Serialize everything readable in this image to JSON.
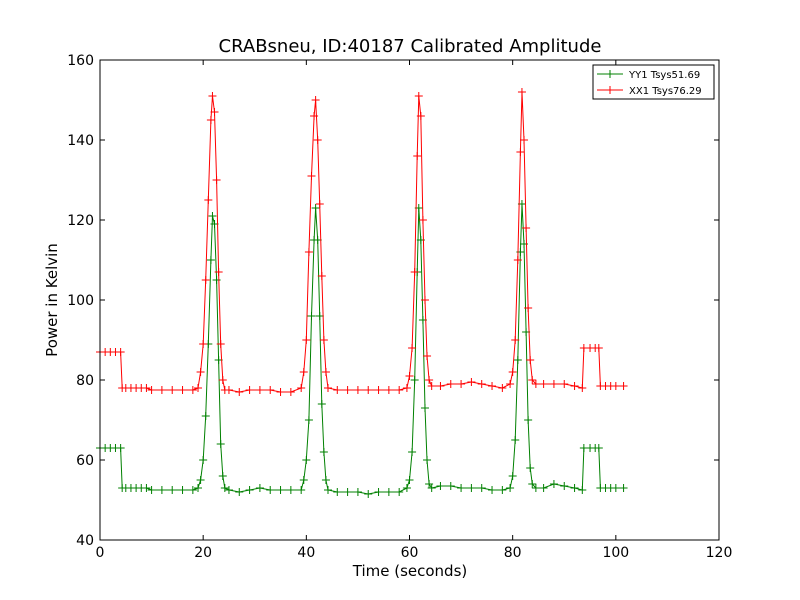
{
  "chart_data": {
    "type": "line",
    "title": "CRABsneu, ID:40187 Calibrated Amplitude",
    "xlabel": "Time (seconds)",
    "ylabel": "Power in Kelvin",
    "xlim": [
      0,
      120
    ],
    "ylim": [
      40,
      160
    ],
    "xticks": [
      "0",
      "20",
      "40",
      "60",
      "80",
      "100",
      "120"
    ],
    "yticks": [
      "40",
      "60",
      "80",
      "100",
      "120",
      "140",
      "160"
    ],
    "grid": false,
    "legend_position": "top-right",
    "marker": "+",
    "series": [
      {
        "name": "YY1 Tsys51.69",
        "color": "#008000",
        "points": [
          [
            0.0,
            63.0
          ],
          [
            1.0,
            63.0
          ],
          [
            2.0,
            63.0
          ],
          [
            3.0,
            63.0
          ],
          [
            4.0,
            63.0
          ],
          [
            4.3,
            53.0
          ],
          [
            5.0,
            53.0
          ],
          [
            6.0,
            53.0
          ],
          [
            7.0,
            53.0
          ],
          [
            8.0,
            53.0
          ],
          [
            9.0,
            53.0
          ],
          [
            10.0,
            52.5
          ],
          [
            12.0,
            52.5
          ],
          [
            14.0,
            52.5
          ],
          [
            16.0,
            52.5
          ],
          [
            18.0,
            52.5
          ],
          [
            19.0,
            53.0
          ],
          [
            19.5,
            55.0
          ],
          [
            20.0,
            60.0
          ],
          [
            20.5,
            71.0
          ],
          [
            21.0,
            89.0
          ],
          [
            21.5,
            110.0
          ],
          [
            21.8,
            121.0
          ],
          [
            22.2,
            119.0
          ],
          [
            22.6,
            105.0
          ],
          [
            23.0,
            85.0
          ],
          [
            23.4,
            64.0
          ],
          [
            23.8,
            56.0
          ],
          [
            24.2,
            53.0
          ],
          [
            25.0,
            52.5
          ],
          [
            27.0,
            52.0
          ],
          [
            29.0,
            52.5
          ],
          [
            31.0,
            53.0
          ],
          [
            33.0,
            52.5
          ],
          [
            35.0,
            52.5
          ],
          [
            37.0,
            52.5
          ],
          [
            39.0,
            52.5
          ],
          [
            39.5,
            55.0
          ],
          [
            40.0,
            60.0
          ],
          [
            40.5,
            70.0
          ],
          [
            41.0,
            96.0
          ],
          [
            41.5,
            115.0
          ],
          [
            41.8,
            123.0
          ],
          [
            42.2,
            115.0
          ],
          [
            42.6,
            96.0
          ],
          [
            43.0,
            74.0
          ],
          [
            43.4,
            62.0
          ],
          [
            43.8,
            55.0
          ],
          [
            44.2,
            52.5
          ],
          [
            46.0,
            52.0
          ],
          [
            48.0,
            52.0
          ],
          [
            50.0,
            52.0
          ],
          [
            52.0,
            51.5
          ],
          [
            54.0,
            52.0
          ],
          [
            56.0,
            52.0
          ],
          [
            58.0,
            52.0
          ],
          [
            59.5,
            53.0
          ],
          [
            60.0,
            55.0
          ],
          [
            60.5,
            62.0
          ],
          [
            61.0,
            80.0
          ],
          [
            61.5,
            107.0
          ],
          [
            61.8,
            123.0
          ],
          [
            62.2,
            115.0
          ],
          [
            62.6,
            95.0
          ],
          [
            63.0,
            73.0
          ],
          [
            63.4,
            60.0
          ],
          [
            63.8,
            54.0
          ],
          [
            64.3,
            53.0
          ],
          [
            66.0,
            53.5
          ],
          [
            68.0,
            53.5
          ],
          [
            70.0,
            53.0
          ],
          [
            72.0,
            53.0
          ],
          [
            74.0,
            53.0
          ],
          [
            76.0,
            52.5
          ],
          [
            78.0,
            52.5
          ],
          [
            79.5,
            53.0
          ],
          [
            80.0,
            56.0
          ],
          [
            80.5,
            65.0
          ],
          [
            81.0,
            85.0
          ],
          [
            81.5,
            112.0
          ],
          [
            81.8,
            124.0
          ],
          [
            82.2,
            114.0
          ],
          [
            82.6,
            92.0
          ],
          [
            83.0,
            70.0
          ],
          [
            83.4,
            58.0
          ],
          [
            83.8,
            54.0
          ],
          [
            84.5,
            53.0
          ],
          [
            86.0,
            53.0
          ],
          [
            88.0,
            54.0
          ],
          [
            90.0,
            53.5
          ],
          [
            92.0,
            53.0
          ],
          [
            93.5,
            52.5
          ],
          [
            93.8,
            63.0
          ],
          [
            95.0,
            63.0
          ],
          [
            96.0,
            63.0
          ],
          [
            96.7,
            63.0
          ],
          [
            97.0,
            53.0
          ],
          [
            98.0,
            53.0
          ],
          [
            99.0,
            53.0
          ],
          [
            100.0,
            53.0
          ],
          [
            101.5,
            53.0
          ]
        ]
      },
      {
        "name": "XX1 Tsys76.29",
        "color": "#ff0000",
        "points": [
          [
            0.0,
            87.0
          ],
          [
            1.0,
            87.0
          ],
          [
            2.0,
            87.0
          ],
          [
            3.0,
            87.0
          ],
          [
            4.0,
            87.0
          ],
          [
            4.3,
            78.0
          ],
          [
            5.0,
            78.0
          ],
          [
            6.0,
            78.0
          ],
          [
            7.0,
            78.0
          ],
          [
            8.0,
            78.0
          ],
          [
            9.0,
            78.0
          ],
          [
            10.0,
            77.5
          ],
          [
            12.0,
            77.5
          ],
          [
            14.0,
            77.5
          ],
          [
            16.0,
            77.5
          ],
          [
            18.0,
            77.5
          ],
          [
            19.0,
            78.0
          ],
          [
            19.5,
            82.0
          ],
          [
            20.0,
            89.0
          ],
          [
            20.5,
            105.0
          ],
          [
            21.0,
            125.0
          ],
          [
            21.5,
            145.0
          ],
          [
            21.8,
            151.0
          ],
          [
            22.2,
            147.0
          ],
          [
            22.6,
            130.0
          ],
          [
            23.0,
            107.0
          ],
          [
            23.4,
            89.0
          ],
          [
            23.8,
            80.0
          ],
          [
            24.2,
            77.5
          ],
          [
            25.0,
            77.5
          ],
          [
            27.0,
            77.0
          ],
          [
            29.0,
            77.5
          ],
          [
            31.0,
            77.5
          ],
          [
            33.0,
            77.5
          ],
          [
            35.0,
            77.0
          ],
          [
            37.0,
            77.0
          ],
          [
            39.0,
            78.0
          ],
          [
            39.5,
            82.0
          ],
          [
            40.0,
            90.0
          ],
          [
            40.5,
            112.0
          ],
          [
            41.0,
            131.0
          ],
          [
            41.5,
            146.0
          ],
          [
            41.8,
            150.0
          ],
          [
            42.2,
            140.0
          ],
          [
            42.6,
            124.0
          ],
          [
            43.0,
            106.0
          ],
          [
            43.4,
            90.0
          ],
          [
            43.8,
            82.0
          ],
          [
            44.2,
            78.0
          ],
          [
            46.0,
            77.5
          ],
          [
            48.0,
            77.5
          ],
          [
            50.0,
            77.5
          ],
          [
            52.0,
            77.5
          ],
          [
            54.0,
            77.5
          ],
          [
            56.0,
            77.5
          ],
          [
            58.0,
            77.5
          ],
          [
            59.5,
            78.0
          ],
          [
            60.0,
            81.0
          ],
          [
            60.5,
            88.0
          ],
          [
            61.0,
            107.0
          ],
          [
            61.5,
            136.0
          ],
          [
            61.8,
            151.0
          ],
          [
            62.2,
            146.0
          ],
          [
            62.6,
            120.0
          ],
          [
            63.0,
            100.0
          ],
          [
            63.4,
            86.0
          ],
          [
            63.8,
            80.0
          ],
          [
            64.3,
            78.5
          ],
          [
            66.0,
            78.5
          ],
          [
            68.0,
            79.0
          ],
          [
            70.0,
            79.0
          ],
          [
            72.0,
            79.5
          ],
          [
            74.0,
            79.0
          ],
          [
            76.0,
            78.5
          ],
          [
            78.0,
            78.0
          ],
          [
            79.5,
            79.0
          ],
          [
            80.0,
            82.0
          ],
          [
            80.5,
            90.0
          ],
          [
            81.0,
            110.0
          ],
          [
            81.5,
            137.0
          ],
          [
            81.8,
            152.0
          ],
          [
            82.2,
            140.0
          ],
          [
            82.6,
            118.0
          ],
          [
            83.0,
            98.0
          ],
          [
            83.4,
            85.0
          ],
          [
            83.8,
            80.0
          ],
          [
            84.5,
            79.0
          ],
          [
            86.0,
            79.0
          ],
          [
            88.0,
            79.0
          ],
          [
            90.0,
            79.0
          ],
          [
            92.0,
            78.5
          ],
          [
            93.5,
            78.0
          ],
          [
            93.8,
            88.0
          ],
          [
            95.0,
            88.0
          ],
          [
            96.0,
            88.0
          ],
          [
            96.7,
            88.0
          ],
          [
            97.0,
            78.5
          ],
          [
            98.0,
            78.5
          ],
          [
            99.0,
            78.5
          ],
          [
            100.0,
            78.5
          ],
          [
            101.5,
            78.5
          ]
        ]
      }
    ]
  }
}
